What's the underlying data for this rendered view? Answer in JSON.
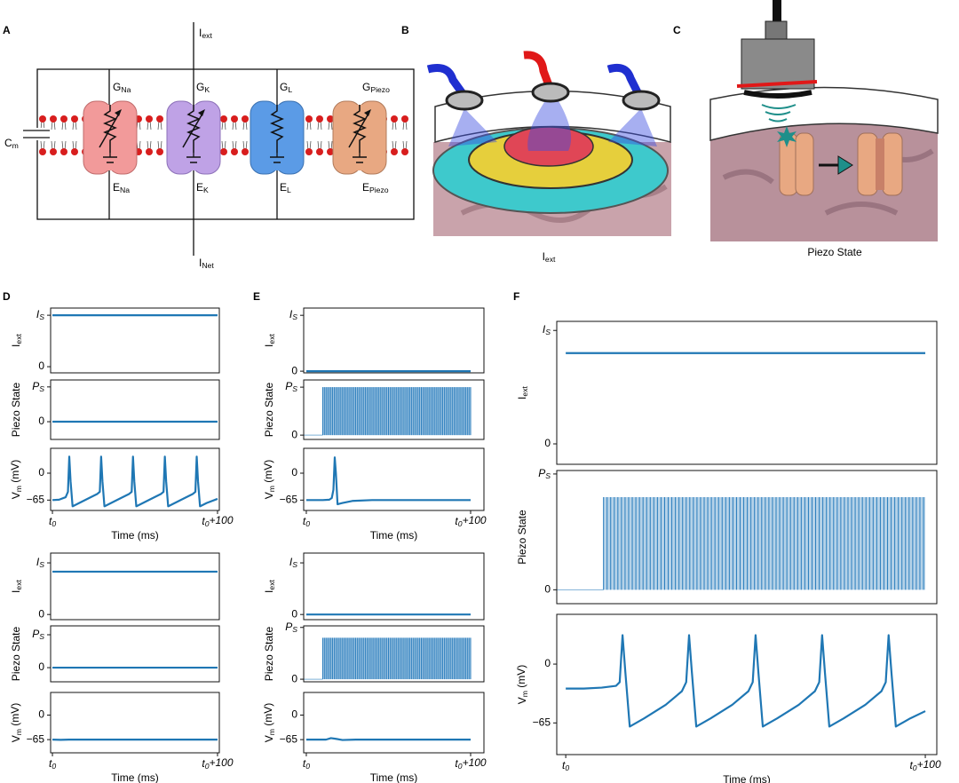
{
  "panel_labels": [
    "A",
    "B",
    "C",
    "D",
    "E",
    "F"
  ],
  "circuit": {
    "current_in": {
      "base": "I",
      "sub": "ext"
    },
    "current_out": {
      "base": "I",
      "sub": "Net"
    },
    "capacitance": {
      "base": "C",
      "sub": "m"
    },
    "channels": [
      {
        "conductance": {
          "base": "G",
          "sub": "Na"
        },
        "reversal": {
          "base": "E",
          "sub": "Na"
        }
      },
      {
        "conductance": {
          "base": "G",
          "sub": "K"
        },
        "reversal": {
          "base": "E",
          "sub": "K"
        }
      },
      {
        "conductance": {
          "base": "G",
          "sub": "L"
        },
        "reversal": {
          "base": "E",
          "sub": "L"
        }
      },
      {
        "conductance": {
          "base": "G",
          "sub": "Piezo"
        },
        "reversal": {
          "base": "E",
          "sub": "Piezo"
        }
      }
    ]
  },
  "stimulation": {
    "caption": {
      "base": "I",
      "sub": "ext"
    }
  },
  "piezo": {
    "caption": "Piezo State"
  },
  "chart_data": [
    {
      "type": "line",
      "ylabel": {
        "base": "I",
        "sub": "ext"
      },
      "color": "#1f77b4",
      "xlim": [
        -1.1,
        101.1
      ],
      "ylim": [
        -0.12,
        1.14
      ],
      "yticks": [
        0,
        {
          "value": 1,
          "label": {
            "base": "I",
            "sub": "S"
          }
        }
      ],
      "x": [
        0,
        100
      ],
      "values": [
        1,
        1
      ]
    },
    {
      "type": "line",
      "ylabel": "Piezo State",
      "color": "#1f77b4",
      "xlim": [
        -1.1,
        101.1
      ],
      "ylim": [
        -0.51,
        1.2
      ],
      "yticks": [
        0,
        {
          "value": 1,
          "label": {
            "base": "P",
            "sub": "S"
          }
        }
      ],
      "x": [
        0,
        100
      ],
      "values": [
        0,
        0
      ]
    },
    {
      "type": "line",
      "ylabel": {
        "base": "V",
        "sub": "m",
        "tail": " (mV)"
      },
      "xlabel": "Time (ms)",
      "color": "#1f77b4",
      "xlim": [
        -1.1,
        101.1
      ],
      "ylim": [
        -90,
        60
      ],
      "yticks": [
        {
          "value": -65,
          "label": "−65"
        },
        0
      ],
      "xticks": [
        {
          "value": 0,
          "label": {
            "base": "t",
            "sub": "0"
          }
        },
        {
          "value": 100,
          "label": {
            "base": "t",
            "sub": "0",
            "tail": "+100"
          }
        }
      ],
      "x": [
        0,
        4,
        8,
        9.4,
        10.2,
        11,
        12.2,
        16.2,
        22.2,
        27.2,
        28.7,
        29.5,
        30.3,
        31.5,
        35.5,
        41.5,
        46.5,
        48,
        48.8,
        49.6,
        50.8,
        54.8,
        60.8,
        65.8,
        67.3,
        68.1,
        68.9,
        70.1,
        74.1,
        80.1,
        85.1,
        86.6,
        87.4,
        88.2,
        89.4,
        93.4,
        100
      ],
      "values": [
        -65,
        -64,
        -58,
        -45,
        40,
        -20,
        -80,
        -72,
        -60,
        -50,
        -45,
        40,
        -20,
        -80,
        -72,
        -60,
        -50,
        -45,
        40,
        -20,
        -80,
        -72,
        -60,
        -50,
        -45,
        40,
        -20,
        -80,
        -72,
        -60,
        -50,
        -45,
        40,
        -20,
        -80,
        -72,
        -62
      ]
    },
    {
      "type": "line",
      "ylabel": {
        "base": "I",
        "sub": "ext"
      },
      "color": "#1f77b4",
      "xlim": [
        -1.1,
        101.1
      ],
      "ylim": [
        -0.1,
        1.19
      ],
      "yticks": [
        0,
        {
          "value": 1,
          "label": {
            "base": "I",
            "sub": "S"
          }
        }
      ],
      "x": [
        0,
        100
      ],
      "values": [
        0.83,
        0.83
      ]
    },
    {
      "type": "line",
      "ylabel": "Piezo State",
      "color": "#1f77b4",
      "xlim": [
        -1.1,
        101.1
      ],
      "ylim": [
        -0.43,
        1.27
      ],
      "yticks": [
        0,
        {
          "value": 1,
          "label": {
            "base": "P",
            "sub": "S"
          }
        }
      ],
      "x": [
        0,
        100
      ],
      "values": [
        0,
        0
      ]
    },
    {
      "type": "line",
      "ylabel": {
        "base": "V",
        "sub": "m",
        "tail": " (mV)"
      },
      "xlabel": "Time (ms)",
      "color": "#1f77b4",
      "xlim": [
        -1.1,
        101.1
      ],
      "ylim": [
        -100,
        60
      ],
      "yticks": [
        {
          "value": -65,
          "label": "−65"
        },
        0
      ],
      "xticks": [
        {
          "value": 0,
          "label": {
            "base": "t",
            "sub": "0"
          }
        },
        {
          "value": 100,
          "label": {
            "base": "t",
            "sub": "0",
            "tail": "+100"
          }
        }
      ],
      "x": [
        0,
        5,
        10,
        100
      ],
      "values": [
        -65,
        -65.5,
        -65,
        -65
      ]
    },
    {
      "type": "line",
      "ylabel": {
        "base": "I",
        "sub": "ext"
      },
      "color": "#1f77b4",
      "xlim": [
        -1.6,
        108.1
      ],
      "ylim": [
        -0.03,
        1.13
      ],
      "yticks": [
        0,
        {
          "value": 1,
          "label": {
            "base": "I",
            "sub": "S"
          }
        }
      ],
      "x": [
        0,
        100
      ],
      "values": [
        0,
        0
      ]
    },
    {
      "type": "pulse",
      "ylabel": "Piezo State",
      "color": "#2a7dbd",
      "xlim": [
        -1.6,
        108.1
      ],
      "ylim": [
        -0.09,
        1.15
      ],
      "yticks": [
        0,
        {
          "value": 1,
          "label": {
            "base": "P",
            "sub": "S"
          }
        }
      ],
      "pulse_start": 10,
      "pulse_end": 100,
      "pulse_period": 1,
      "amplitude": 1
    },
    {
      "type": "line",
      "ylabel": {
        "base": "V",
        "sub": "m",
        "tail": " (mV)"
      },
      "xlabel": "Time (ms)",
      "color": "#1f77b4",
      "xlim": [
        -1.6,
        108.1
      ],
      "ylim": [
        -90,
        60
      ],
      "yticks": [
        {
          "value": -65,
          "label": "−65"
        },
        0
      ],
      "xticks": [
        {
          "value": 0,
          "label": {
            "base": "t",
            "sub": "0"
          }
        },
        {
          "value": 100,
          "label": {
            "base": "t",
            "sub": "0",
            "tail": "+100"
          }
        }
      ],
      "x": [
        0,
        10,
        14,
        15.5,
        16.5,
        17.3,
        18,
        19,
        22,
        28,
        40,
        100
      ],
      "values": [
        -65,
        -65,
        -64,
        -60,
        -40,
        38,
        0,
        -75,
        -72,
        -67,
        -65,
        -65
      ]
    },
    {
      "type": "line",
      "ylabel": {
        "base": "I",
        "sub": "ext"
      },
      "color": "#1f77b4",
      "xlim": [
        -1.6,
        108.1
      ],
      "ylim": [
        -0.1,
        1.19
      ],
      "yticks": [
        0,
        {
          "value": 1,
          "label": {
            "base": "I",
            "sub": "S"
          }
        }
      ],
      "x": [
        0,
        100
      ],
      "values": [
        0,
        0
      ]
    },
    {
      "type": "pulse",
      "ylabel": "Piezo State",
      "color": "#2a7dbd",
      "xlim": [
        -1.6,
        108.1
      ],
      "ylim": [
        -0.05,
        1.03
      ],
      "yticks": [
        0,
        {
          "value": 1,
          "label": {
            "base": "P",
            "sub": "S"
          }
        }
      ],
      "pulse_start": 10,
      "pulse_end": 100,
      "pulse_period": 1,
      "amplitude": 0.8
    },
    {
      "type": "line",
      "ylabel": {
        "base": "V",
        "sub": "m",
        "tail": " (mV)"
      },
      "xlabel": "Time (ms)",
      "color": "#1f77b4",
      "xlim": [
        -1.6,
        108.1
      ],
      "ylim": [
        -100,
        60
      ],
      "yticks": [
        {
          "value": -65,
          "label": "−65"
        },
        0
      ],
      "xticks": [
        {
          "value": 0,
          "label": {
            "base": "t",
            "sub": "0"
          }
        },
        {
          "value": 100,
          "label": {
            "base": "t",
            "sub": "0",
            "tail": "+100"
          }
        }
      ],
      "x": [
        0,
        12,
        15,
        18,
        22,
        30,
        100
      ],
      "values": [
        -65,
        -65,
        -61,
        -63,
        -66,
        -65,
        -65
      ]
    },
    {
      "type": "line",
      "ylabel": {
        "base": "I",
        "sub": "ext"
      },
      "color": "#1f77b4",
      "xlim": [
        -2.5,
        103.2
      ],
      "ylim": [
        -0.18,
        1.08
      ],
      "yticks": [
        0,
        {
          "value": 1,
          "label": {
            "base": "I",
            "sub": "S"
          }
        }
      ],
      "x": [
        0,
        100
      ],
      "values": [
        0.8,
        0.8
      ]
    },
    {
      "type": "pulse",
      "ylabel": "Piezo State",
      "color": "#2a7dbd",
      "xlim": [
        -2.5,
        103.2
      ],
      "ylim": [
        -0.12,
        1.03
      ],
      "yticks": [
        0,
        {
          "value": 1,
          "label": {
            "base": "P",
            "sub": "S"
          }
        }
      ],
      "pulse_start": 10.5,
      "pulse_end": 100,
      "pulse_period": 1,
      "amplitude": 0.8
    },
    {
      "type": "line",
      "ylabel": {
        "base": "V",
        "sub": "m",
        "tail": " (mV)"
      },
      "xlabel": "Time (ms)",
      "color": "#1f77b4",
      "xlim": [
        -2.5,
        103.2
      ],
      "ylim": [
        -100,
        55
      ],
      "yticks": [
        {
          "value": -65,
          "label": "−65"
        },
        0
      ],
      "xticks": [
        {
          "value": 0,
          "label": {
            "base": "t",
            "sub": "0"
          }
        },
        {
          "value": 100,
          "label": {
            "base": "t",
            "sub": "0",
            "tail": "+100"
          }
        }
      ],
      "x": [
        0,
        5,
        10,
        14,
        15,
        15.8,
        16.6,
        17.8,
        21.8,
        27.8,
        32.3,
        33.5,
        34.3,
        35.1,
        36.3,
        40.3,
        46.3,
        50.8,
        52,
        52.8,
        53.6,
        54.8,
        58.8,
        64.8,
        69.3,
        70.5,
        71.3,
        72.1,
        73.3,
        77.3,
        83.3,
        87.8,
        89,
        89.8,
        90.6,
        91.8,
        95.8,
        100
      ],
      "values": [
        -27,
        -27,
        -26,
        -24,
        -20,
        32,
        -10,
        -69,
        -60,
        -45,
        -30,
        -20,
        32,
        -10,
        -69,
        -60,
        -45,
        -30,
        -20,
        32,
        -10,
        -69,
        -60,
        -45,
        -30,
        -20,
        32,
        -10,
        -69,
        -60,
        -45,
        -30,
        -20,
        32,
        -10,
        -69,
        -60,
        -52
      ]
    }
  ]
}
